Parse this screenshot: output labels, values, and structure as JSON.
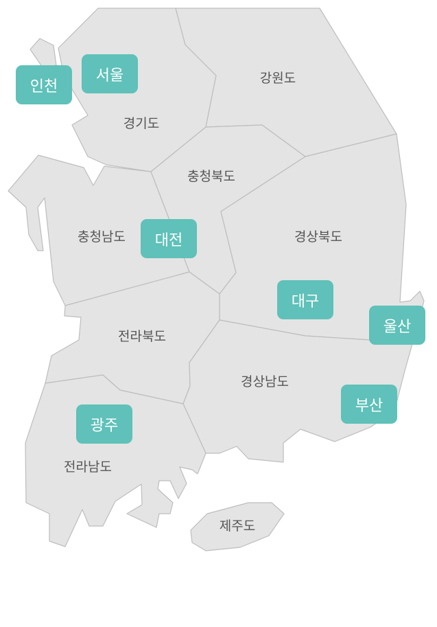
{
  "map": {
    "regions": {
      "gyeonggi": "경기도",
      "gangwon": "강원도",
      "chungbuk": "충청북도",
      "chungnam": "충청남도",
      "gyeongbuk": "경상북도",
      "jeonbuk": "전라북도",
      "gyeongnam": "경상남도",
      "jeonnam": "전라남도",
      "jeju": "제주도"
    },
    "cities": {
      "seoul": "서울",
      "incheon": "인천",
      "daejeon": "대전",
      "daegu": "대구",
      "ulsan": "울산",
      "busan": "부산",
      "gwangju": "광주"
    },
    "colors": {
      "region_fill": "#e4e4e4",
      "region_border": "#bdbdbd",
      "city_badge": "#5fc1b9",
      "label_text": "#555555"
    }
  }
}
